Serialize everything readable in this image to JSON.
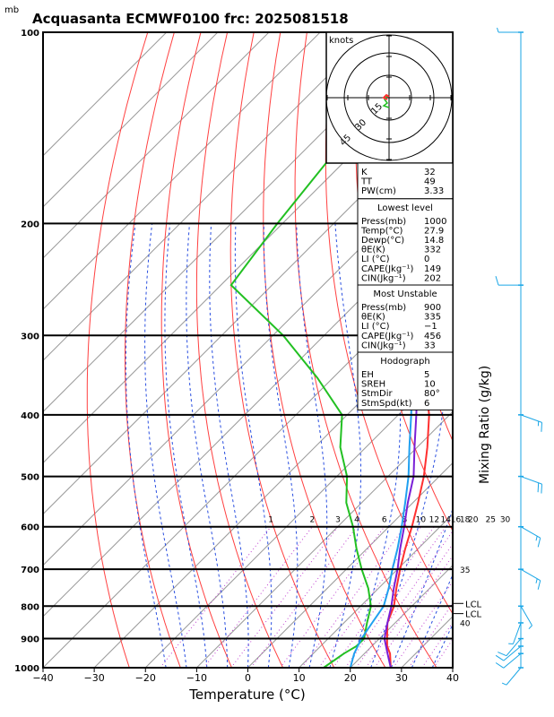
{
  "title": "Acquasanta ECMWF0100 frc: 2025081518",
  "unit_mb": "mb",
  "colors": {
    "isotherm": "#9a9a9a",
    "dry_adiabat": "#ff4040",
    "moist_adiabat": "#2a4fe0",
    "mixing_ratio": "#c040d0",
    "temperature": "#ff3030",
    "dewpoint": "#22c022",
    "parcel": "#7a1fd6",
    "wetbulb": "#20a0f0",
    "barbs": "#1aa6e6"
  },
  "chart_data": {
    "type": "line",
    "title": "Acquasanta ECMWF0100 frc: 2025081518",
    "xlabel": "Temperature (°C)",
    "ylabel": "Mixing Ratio (g/kg)",
    "xlim": [
      -40,
      40
    ],
    "ylim_mb": [
      1000,
      100
    ],
    "x_ticks": [
      "−40",
      "−30",
      "−20",
      "−10",
      "0",
      "10",
      "20",
      "30",
      "40"
    ],
    "pressure_ticks": [
      "100",
      "200",
      "300",
      "400",
      "500",
      "600",
      "700",
      "800",
      "900",
      "1000"
    ],
    "mixing_ratio_labels": [
      "1",
      "2",
      "3",
      "4",
      "6",
      "8",
      "10",
      "12",
      "14",
      "16",
      "18",
      "20",
      "25",
      "30"
    ],
    "mixing_ratio_side_labels": [
      "35",
      "40"
    ],
    "lcl_labels": [
      "LCL",
      "LCL"
    ],
    "series": [
      {
        "name": "Temperature",
        "points": [
          [
            1000,
            27.9
          ],
          [
            950,
            25.0
          ],
          [
            925,
            23.0
          ],
          [
            900,
            21.5
          ],
          [
            850,
            18.5
          ],
          [
            800,
            16.5
          ],
          [
            750,
            13.5
          ],
          [
            700,
            10.5
          ],
          [
            650,
            7.5
          ],
          [
            600,
            4.5
          ],
          [
            550,
            1.0
          ],
          [
            500,
            -3.0
          ],
          [
            450,
            -8.0
          ],
          [
            400,
            -14.0
          ],
          [
            350,
            -22.0
          ],
          [
            300,
            -31.0
          ],
          [
            250,
            -42.0
          ],
          [
            200,
            -55.0
          ],
          [
            150,
            -62.0
          ],
          [
            100,
            -68.0
          ]
        ]
      },
      {
        "name": "Dewpoint",
        "points": [
          [
            1000,
            14.8
          ],
          [
            950,
            16.0
          ],
          [
            925,
            17.0
          ],
          [
            900,
            17.0
          ],
          [
            850,
            14.5
          ],
          [
            800,
            12.0
          ],
          [
            750,
            8.0
          ],
          [
            700,
            3.0
          ],
          [
            650,
            -2.0
          ],
          [
            600,
            -7.0
          ],
          [
            550,
            -13.0
          ],
          [
            500,
            -18.0
          ],
          [
            450,
            -25.0
          ],
          [
            400,
            -31.0
          ],
          [
            350,
            -43.0
          ],
          [
            300,
            -58.0
          ],
          [
            250,
            -78.0
          ],
          [
            200,
            -81.0
          ],
          [
            150,
            -84.0
          ],
          [
            100,
            -89.0
          ]
        ]
      },
      {
        "name": "Parcel",
        "points": [
          [
            1000,
            27.9
          ],
          [
            950,
            24.5
          ],
          [
            900,
            21.0
          ],
          [
            850,
            18.5
          ],
          [
            800,
            16.0
          ],
          [
            750,
            13.0
          ],
          [
            700,
            10.0
          ],
          [
            650,
            6.5
          ],
          [
            600,
            3.0
          ],
          [
            550,
            -1.0
          ],
          [
            500,
            -5.0
          ],
          [
            450,
            -10.5
          ],
          [
            400,
            -16.5
          ],
          [
            350,
            -23.5
          ],
          [
            300,
            -32.0
          ],
          [
            250,
            -43.0
          ],
          [
            200,
            -57.0
          ],
          [
            150,
            -73.0
          ],
          [
            100,
            -95.0
          ]
        ]
      },
      {
        "name": "Wet-bulb",
        "points": [
          [
            1000,
            20.0
          ],
          [
            950,
            18.0
          ],
          [
            900,
            16.5
          ],
          [
            850,
            15.5
          ],
          [
            800,
            14.5
          ],
          [
            750,
            12.0
          ],
          [
            700,
            9.0
          ],
          [
            650,
            6.0
          ],
          [
            600,
            2.5
          ],
          [
            550,
            -1.5
          ],
          [
            500,
            -6.0
          ],
          [
            450,
            -11.5
          ],
          [
            400,
            -17.5
          ],
          [
            350,
            -24.5
          ],
          [
            300,
            -33.5
          ],
          [
            250,
            -44.5
          ],
          [
            200,
            -57.5
          ],
          [
            150,
            -75.0
          ],
          [
            100,
            -98.0
          ]
        ]
      }
    ],
    "wind_barbs": [
      {
        "p": 100,
        "speed_kt": 5,
        "dir_deg": 270
      },
      {
        "p": 250,
        "speed_kt": 10,
        "dir_deg": 270
      },
      {
        "p": 400,
        "speed_kt": 15,
        "dir_deg": 110
      },
      {
        "p": 500,
        "speed_kt": 20,
        "dir_deg": 110
      },
      {
        "p": 600,
        "speed_kt": 15,
        "dir_deg": 120
      },
      {
        "p": 700,
        "speed_kt": 15,
        "dir_deg": 120
      },
      {
        "p": 800,
        "speed_kt": 5,
        "dir_deg": 150
      },
      {
        "p": 850,
        "speed_kt": 5,
        "dir_deg": 200
      },
      {
        "p": 900,
        "speed_kt": 10,
        "dir_deg": 220
      },
      {
        "p": 925,
        "speed_kt": 10,
        "dir_deg": 230
      },
      {
        "p": 950,
        "speed_kt": 10,
        "dir_deg": 230
      },
      {
        "p": 1000,
        "speed_kt": 5,
        "dir_deg": 220
      }
    ]
  },
  "hodograph": {
    "label": "knots",
    "ring_labels": [
      "15",
      "30",
      "45"
    ]
  },
  "indices": {
    "top": [
      {
        "label": "K",
        "value": "32"
      },
      {
        "label": "TT",
        "value": "49"
      },
      {
        "label": "PW(cm)",
        "value": "3.33"
      }
    ],
    "sections": [
      {
        "header": "Lowest level",
        "rows": [
          {
            "label": "Press(mb)",
            "value": "1000"
          },
          {
            "label": "Temp(°C)",
            "value": "27.9"
          },
          {
            "label": "Dewp(°C)",
            "value": "14.8"
          },
          {
            "label": "θE(K)",
            "value": "332"
          },
          {
            "label": "LI (°C)",
            "value": "0"
          },
          {
            "label": "CAPE(Jkg⁻¹)",
            "value": "149"
          },
          {
            "label": "CIN(Jkg⁻¹)",
            "value": "202"
          }
        ]
      },
      {
        "header": "Most Unstable",
        "rows": [
          {
            "label": "Press(mb)",
            "value": "900"
          },
          {
            "label": "θE(K)",
            "value": "335"
          },
          {
            "label": "LI (°C)",
            "value": "−1"
          },
          {
            "label": "CAPE(Jkg⁻¹)",
            "value": "456"
          },
          {
            "label": "CIN(Jkg⁻¹)",
            "value": "33"
          }
        ]
      },
      {
        "header": "Hodograph",
        "rows": [
          {
            "label": "EH",
            "value": "5"
          },
          {
            "label": "SREH",
            "value": "10"
          },
          {
            "label": "StmDir",
            "value": "80°"
          },
          {
            "label": "StmSpd(kt)",
            "value": "6"
          }
        ]
      }
    ]
  }
}
